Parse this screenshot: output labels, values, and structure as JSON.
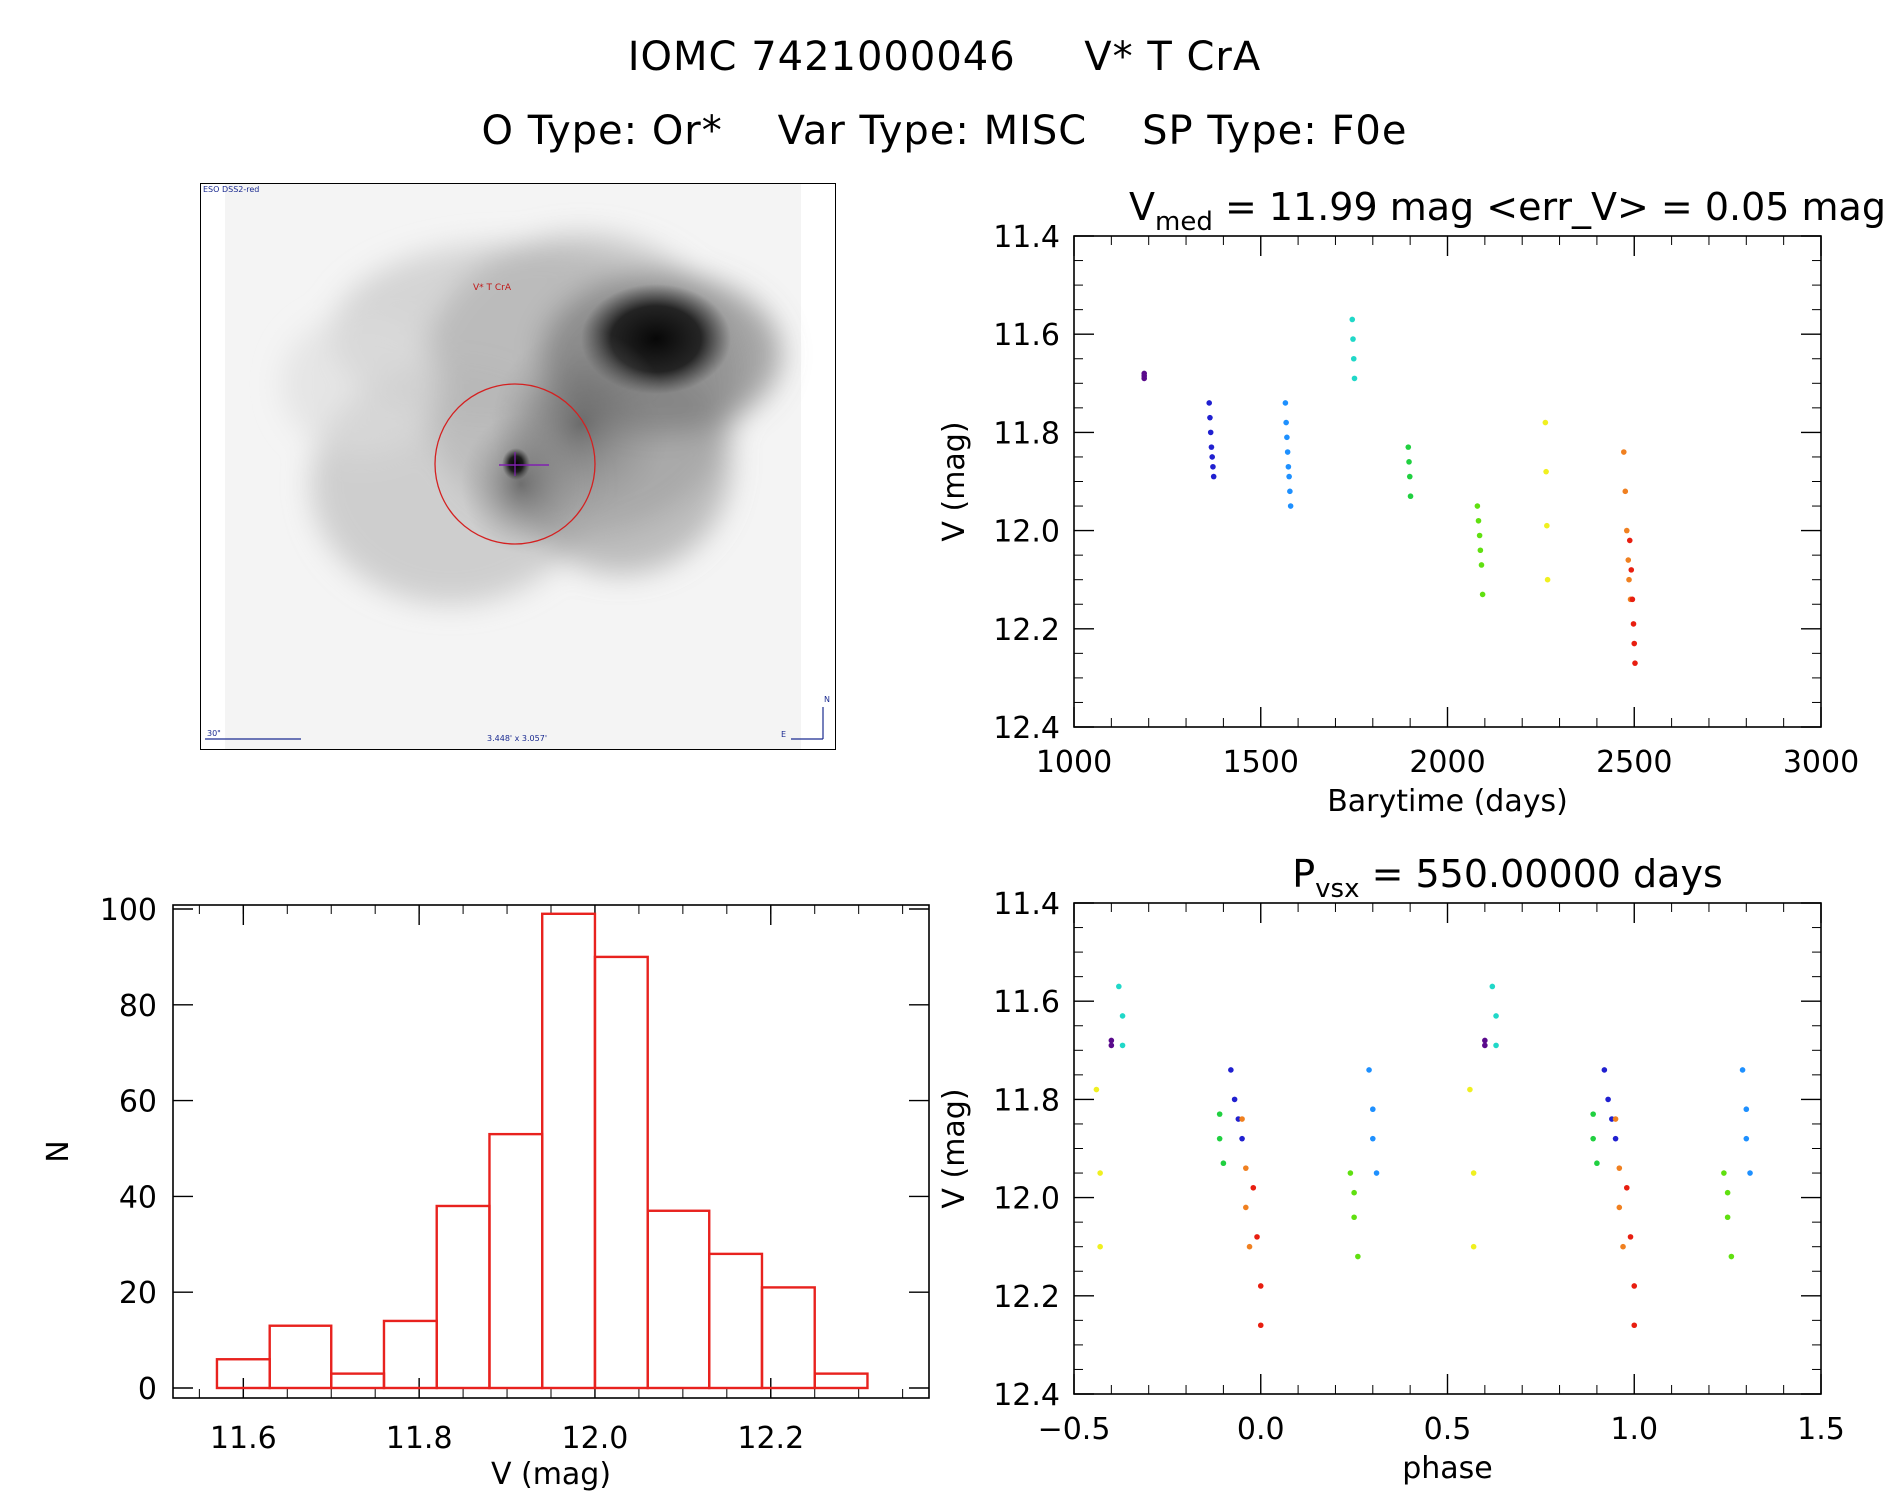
{
  "header": {
    "title_id": "IOMC 7421000046",
    "title_name": "V* T CrA",
    "subtitle_otype": "O Type: Or*",
    "subtitle_vartype": "Var Type: MISC",
    "subtitle_sptype": "SP Type: F0e"
  },
  "image_panel": {
    "survey_label": "ESO DSS2-red",
    "target_label": "V* T CrA",
    "scale_label": "30\"",
    "fov_label": "3.448' x 3.057'",
    "compass_n": "N",
    "compass_e": "E",
    "circle_color": "#d42020",
    "marker_color": "#8020b0"
  },
  "colors": {
    "hist": "#e8221e",
    "seasons": [
      "#5a0a8c",
      "#2020d0",
      "#1e90ff",
      "#20d8c8",
      "#20d040",
      "#60e010",
      "#f0f020",
      "#f08020",
      "#e81e10"
    ]
  },
  "chart_data": [
    {
      "id": "lightcurve",
      "type": "scatter",
      "title_main": "V",
      "title_sub": "med",
      "title_rest": " = 11.99 mag <err_V> = 0.05 mag",
      "xlabel": "Barytime (days)",
      "ylabel": "V (mag)",
      "xlim": [
        1000,
        3000
      ],
      "ylim": [
        12.4,
        11.4
      ],
      "xticks": [
        "1000",
        "1500",
        "2000",
        "2500",
        "3000"
      ],
      "yticks": [
        "11.4",
        "11.6",
        "11.8",
        "12.0",
        "12.2",
        "12.4"
      ],
      "series": [
        {
          "x": [
            1188,
            1188,
            1188
          ],
          "y": [
            11.68,
            11.685,
            11.69
          ]
        },
        {
          "x": [
            1362,
            1364,
            1366,
            1368,
            1370,
            1372,
            1374
          ],
          "y": [
            11.74,
            11.77,
            11.8,
            11.83,
            11.85,
            11.87,
            11.89
          ]
        },
        {
          "x": [
            1566,
            1568,
            1570,
            1572,
            1574,
            1576,
            1578,
            1580
          ],
          "y": [
            11.74,
            11.78,
            11.81,
            11.84,
            11.87,
            11.89,
            11.92,
            11.95
          ]
        },
        {
          "x": [
            1745,
            1747,
            1749,
            1751
          ],
          "y": [
            11.57,
            11.61,
            11.65,
            11.69
          ]
        },
        {
          "x": [
            1895,
            1897,
            1899,
            1901
          ],
          "y": [
            11.83,
            11.86,
            11.89,
            11.93
          ]
        },
        {
          "x": [
            2080,
            2083,
            2086,
            2088,
            2091,
            2094
          ],
          "y": [
            11.95,
            11.98,
            12.01,
            12.04,
            12.07,
            12.13
          ]
        },
        {
          "x": [
            2262,
            2264,
            2266,
            2268
          ],
          "y": [
            11.78,
            11.88,
            11.99,
            12.1
          ]
        },
        {
          "x": [
            2472,
            2476,
            2480,
            2484,
            2486,
            2490
          ],
          "y": [
            11.84,
            11.92,
            12.0,
            12.06,
            12.1,
            12.14
          ]
        },
        {
          "x": [
            2488,
            2492,
            2495,
            2498,
            2500,
            2502
          ],
          "y": [
            12.02,
            12.08,
            12.14,
            12.19,
            12.23,
            12.27
          ]
        }
      ]
    },
    {
      "id": "phased",
      "type": "scatter",
      "title_main": "P",
      "title_sub": "vsx",
      "title_rest": " = 550.00000 days",
      "xlabel": "phase",
      "ylabel": "V (mag)",
      "xlim": [
        -0.5,
        1.5
      ],
      "ylim": [
        12.4,
        11.4
      ],
      "xticks": [
        "−0.5",
        "0.0",
        "0.5",
        "1.0",
        "1.5"
      ],
      "yticks": [
        "11.4",
        "11.6",
        "11.8",
        "12.0",
        "12.2",
        "12.4"
      ],
      "series": [
        {
          "x": [
            -0.4,
            -0.4,
            0.6,
            0.6
          ],
          "y": [
            11.68,
            11.69,
            11.68,
            11.69
          ]
        },
        {
          "x": [
            -0.08,
            -0.07,
            -0.06,
            -0.05,
            0.92,
            0.93,
            0.94,
            0.95
          ],
          "y": [
            11.74,
            11.8,
            11.84,
            11.88,
            11.74,
            11.8,
            11.84,
            11.88
          ]
        },
        {
          "x": [
            0.29,
            0.3,
            0.3,
            0.31,
            1.29,
            1.3,
            1.3,
            1.31
          ],
          "y": [
            11.74,
            11.82,
            11.88,
            11.95,
            11.74,
            11.82,
            11.88,
            11.95
          ]
        },
        {
          "x": [
            -0.38,
            -0.37,
            -0.37,
            0.62,
            0.63,
            0.63
          ],
          "y": [
            11.57,
            11.63,
            11.69,
            11.57,
            11.63,
            11.69
          ]
        },
        {
          "x": [
            -0.11,
            -0.11,
            -0.1,
            0.89,
            0.89,
            0.9
          ],
          "y": [
            11.83,
            11.88,
            11.93,
            11.83,
            11.88,
            11.93
          ]
        },
        {
          "x": [
            0.24,
            0.25,
            0.25,
            0.26,
            1.24,
            1.25,
            1.25,
            1.26
          ],
          "y": [
            11.95,
            11.99,
            12.04,
            12.12,
            11.95,
            11.99,
            12.04,
            12.12
          ]
        },
        {
          "x": [
            -0.44,
            -0.43,
            -0.43,
            0.56,
            0.57,
            0.57
          ],
          "y": [
            11.78,
            11.95,
            12.1,
            11.78,
            11.95,
            12.1
          ]
        },
        {
          "x": [
            -0.05,
            -0.04,
            -0.04,
            -0.03,
            0.95,
            0.96,
            0.96,
            0.97
          ],
          "y": [
            11.84,
            11.94,
            12.02,
            12.1,
            11.84,
            11.94,
            12.02,
            12.1
          ]
        },
        {
          "x": [
            -0.02,
            -0.01,
            0.0,
            0.0,
            0.98,
            0.99,
            1.0,
            1.0
          ],
          "y": [
            11.98,
            12.08,
            12.18,
            12.26,
            11.98,
            12.08,
            12.18,
            12.26
          ]
        }
      ]
    },
    {
      "id": "histogram",
      "type": "bar",
      "xlabel": "V (mag)",
      "ylabel": "N",
      "xlim": [
        11.52,
        12.38
      ],
      "ylim": [
        0,
        100
      ],
      "xticks": [
        "11.6",
        "11.8",
        "12.0",
        "12.2"
      ],
      "yticks": [
        "0",
        "20",
        "40",
        "60",
        "80",
        "100"
      ],
      "bin_edges": [
        11.57,
        11.63,
        11.7,
        11.76,
        11.82,
        11.88,
        11.94,
        12.0,
        12.06,
        12.13,
        12.19,
        12.25,
        12.31
      ],
      "values": [
        6,
        13,
        3,
        14,
        38,
        53,
        99,
        90,
        37,
        28,
        21,
        3
      ]
    }
  ]
}
